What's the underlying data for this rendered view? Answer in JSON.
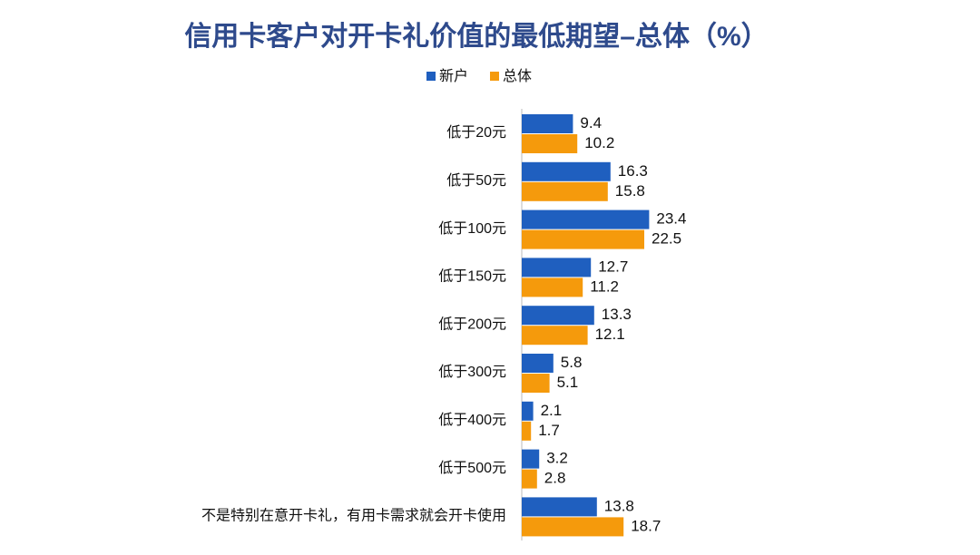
{
  "chart_data": {
    "type": "bar",
    "orientation": "horizontal",
    "title": "信用卡客户对开卡礼价值的最低期望–总体（%）",
    "categories": [
      "低于20元",
      "低于50元",
      "低于100元",
      "低于150元",
      "低于200元",
      "低于300元",
      "低于400元",
      "低于500元",
      "不是特别在意开卡礼，有用卡需求就会开卡使用"
    ],
    "series": [
      {
        "name": "新户",
        "color": "#1f5fbf",
        "values": [
          9.4,
          16.3,
          23.4,
          12.7,
          13.3,
          5.8,
          2.1,
          3.2,
          13.8
        ]
      },
      {
        "name": "总体",
        "color": "#f59a0c",
        "values": [
          10.2,
          15.8,
          22.5,
          11.2,
          12.1,
          5.1,
          1.7,
          2.8,
          18.7
        ]
      }
    ],
    "legend": "top"
  }
}
